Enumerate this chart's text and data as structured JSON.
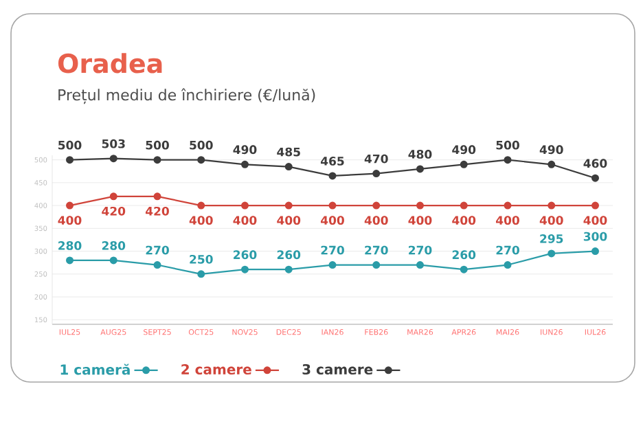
{
  "chart_data": {
    "type": "line",
    "title": "Oradea",
    "subtitle": "Prețul mediu de închiriere (€/lună)",
    "categories": [
      "IUL25",
      "AUG25",
      "SEPT25",
      "OCT25",
      "NOV25",
      "DEC25",
      "IAN26",
      "FEB26",
      "MAR26",
      "APR26",
      "MAI26",
      "IUN26",
      "IUL26"
    ],
    "series": [
      {
        "name": "1 cameră",
        "color": "#2a9ca8",
        "values": [
          280,
          280,
          270,
          250,
          260,
          260,
          270,
          270,
          270,
          260,
          270,
          295,
          300
        ]
      },
      {
        "name": "2 camere",
        "color": "#d0443a",
        "values": [
          400,
          420,
          420,
          400,
          400,
          400,
          400,
          400,
          400,
          400,
          400,
          400,
          400
        ]
      },
      {
        "name": "3 camere",
        "color": "#3c3c3c",
        "values": [
          500,
          503,
          500,
          500,
          490,
          485,
          465,
          470,
          480,
          490,
          500,
          490,
          460
        ]
      }
    ],
    "ylim": [
      140,
      510
    ],
    "yticks": [
      150,
      200,
      250,
      300,
      350,
      400,
      450,
      500
    ],
    "grid": "y",
    "legend": "bottom left",
    "marker": "circle",
    "line_style": "solid",
    "data_labels": true
  }
}
